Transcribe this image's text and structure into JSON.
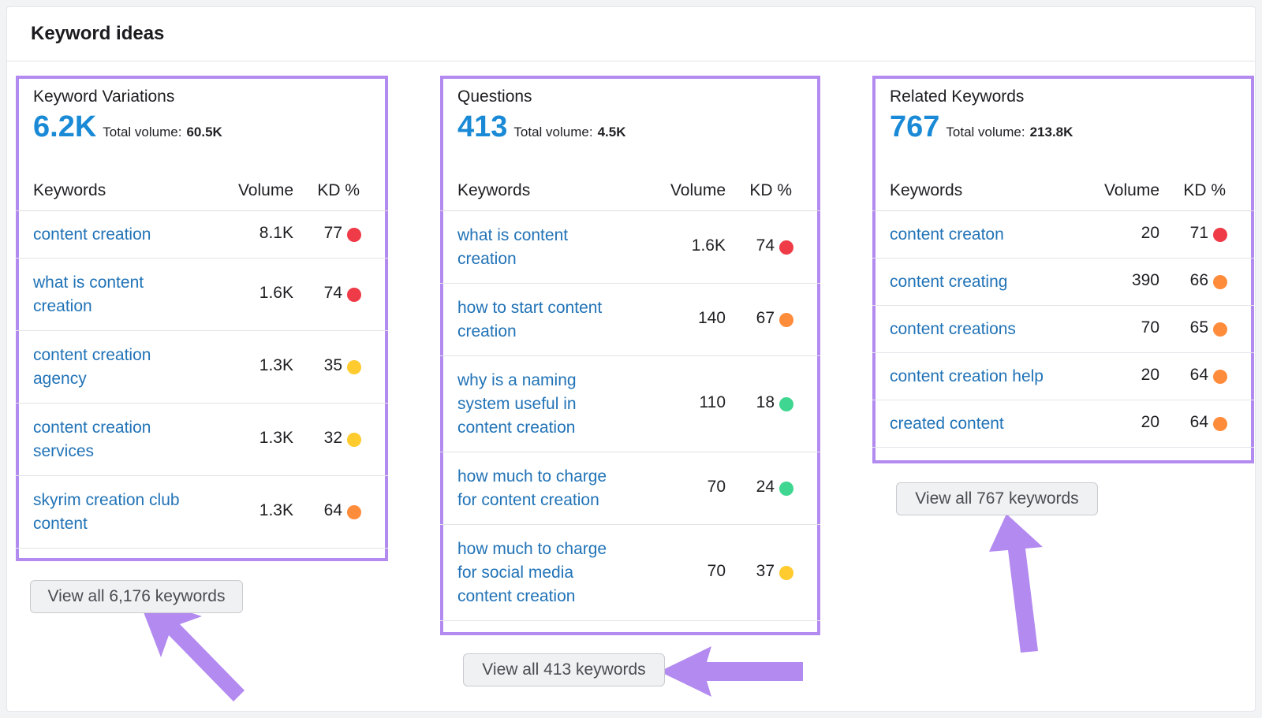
{
  "header": {
    "title": "Keyword ideas"
  },
  "colors": {
    "link": "#2173b7",
    "accent_number": "#1a8ad6",
    "highlight": "#b38af0",
    "kd_red": "#ee3b47",
    "kd_orange": "#ff8c3b",
    "kd_yellow": "#ffcb2f",
    "kd_green": "#3ed690"
  },
  "columns": [
    {
      "title": "Keyword Variations",
      "count": "6.2K",
      "total_volume_label": "Total volume:",
      "total_volume": "60.5K",
      "headers": {
        "keywords": "Keywords",
        "volume": "Volume",
        "kd": "KD %"
      },
      "rows": [
        {
          "keyword": "content creation",
          "volume": "8.1K",
          "kd": "77",
          "kd_level": "red"
        },
        {
          "keyword": "what is content creation",
          "volume": "1.6K",
          "kd": "74",
          "kd_level": "red"
        },
        {
          "keyword": "content creation agency",
          "volume": "1.3K",
          "kd": "35",
          "kd_level": "yellow"
        },
        {
          "keyword": "content creation services",
          "volume": "1.3K",
          "kd": "32",
          "kd_level": "yellow"
        },
        {
          "keyword": "skyrim creation club content",
          "volume": "1.3K",
          "kd": "64",
          "kd_level": "orange"
        }
      ],
      "view_all": "View all 6,176 keywords"
    },
    {
      "title": "Questions",
      "count": "413",
      "total_volume_label": "Total volume:",
      "total_volume": "4.5K",
      "headers": {
        "keywords": "Keywords",
        "volume": "Volume",
        "kd": "KD %"
      },
      "rows": [
        {
          "keyword": "what is content creation",
          "volume": "1.6K",
          "kd": "74",
          "kd_level": "red"
        },
        {
          "keyword": "how to start content creation",
          "volume": "140",
          "kd": "67",
          "kd_level": "orange"
        },
        {
          "keyword": "why is a naming system useful in content creation",
          "volume": "110",
          "kd": "18",
          "kd_level": "green"
        },
        {
          "keyword": "how much to charge for content creation",
          "volume": "70",
          "kd": "24",
          "kd_level": "green"
        },
        {
          "keyword": "how much to charge for social media content creation",
          "volume": "70",
          "kd": "37",
          "kd_level": "yellow"
        }
      ],
      "view_all": "View all 413 keywords"
    },
    {
      "title": "Related Keywords",
      "count": "767",
      "total_volume_label": "Total volume:",
      "total_volume": "213.8K",
      "headers": {
        "keywords": "Keywords",
        "volume": "Volume",
        "kd": "KD %"
      },
      "rows": [
        {
          "keyword": "content creaton",
          "volume": "20",
          "kd": "71",
          "kd_level": "red"
        },
        {
          "keyword": "content creating",
          "volume": "390",
          "kd": "66",
          "kd_level": "orange"
        },
        {
          "keyword": "content creations",
          "volume": "70",
          "kd": "65",
          "kd_level": "orange"
        },
        {
          "keyword": "content creation help",
          "volume": "20",
          "kd": "64",
          "kd_level": "orange"
        },
        {
          "keyword": "created content",
          "volume": "20",
          "kd": "64",
          "kd_level": "orange"
        }
      ],
      "view_all": "View all 767 keywords"
    }
  ]
}
